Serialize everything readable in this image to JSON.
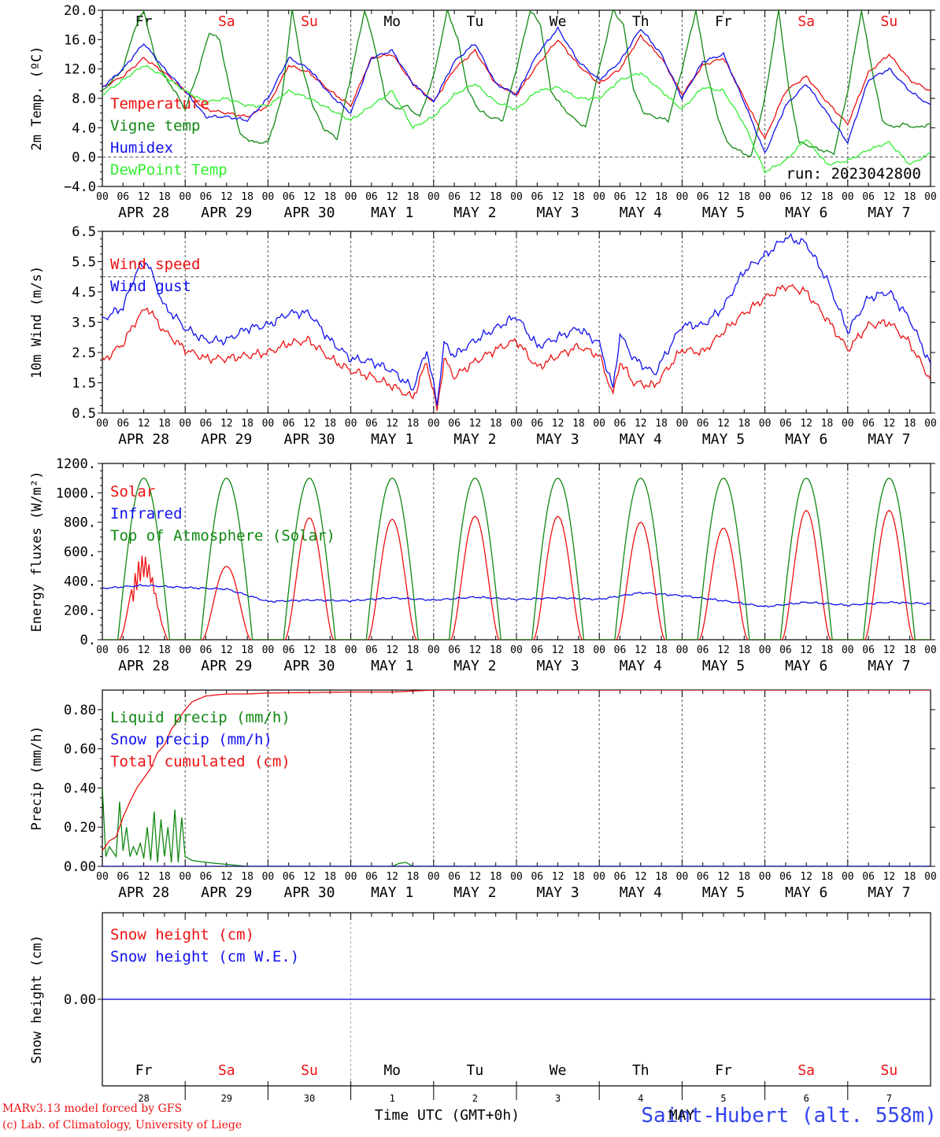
{
  "days": {
    "labels": [
      "APR 28",
      "APR 29",
      "APR 30",
      "MAY  1",
      "MAY  2",
      "MAY  3",
      "MAY  4",
      "MAY  5",
      "MAY  6",
      "MAY  7"
    ],
    "weekdays": [
      "Fr",
      "Sa",
      "Su",
      "Mo",
      "Tu",
      "We",
      "Th",
      "Fr",
      "Sa",
      "Su"
    ],
    "weekend": [
      false,
      true,
      true,
      false,
      false,
      false,
      false,
      false,
      true,
      true
    ],
    "day_numbers": [
      "28",
      "29",
      "30",
      "1",
      "2",
      "3",
      "4",
      "5",
      "6",
      "7"
    ],
    "hour_ticks": [
      "00",
      "06",
      "12",
      "18"
    ],
    "final_tick": "00"
  },
  "colors": {
    "red": "#ee1111",
    "darkgreen": "#118811",
    "blue": "#1111ee",
    "lightgreen": "#33ee33",
    "purple": "#8833aa",
    "grid": "#555555"
  },
  "footer": {
    "credit_line1": "MARv3.13 model forced by GFS",
    "credit_line2": "(c) Lab. of Climatology, University of Liege",
    "xlabel": "Time UTC (GMT+0h)",
    "month_overlay": "MAY",
    "station": "Saint-Hubert (alt. 558m)"
  },
  "chart_data": [
    {
      "id": "temp",
      "type": "line",
      "ylabel": "2m Temp. (ºC)",
      "ylim": [
        -4,
        20
      ],
      "yticks": [
        "20.0",
        "16.0",
        "12.0",
        "8.0",
        "4.0",
        "0.0",
        "−4.0"
      ],
      "ytick_values": [
        20,
        16,
        12,
        8,
        4,
        0,
        -4
      ],
      "reference_line": 0,
      "annotation": "run: 2023042800",
      "x_unit": "hours since Apr 28 00 UTC",
      "series": [
        {
          "name": "Temperature",
          "color": "red",
          "x": [
            0,
            6,
            12,
            18,
            24,
            30,
            36,
            42,
            48,
            54,
            60,
            66,
            72,
            78,
            84,
            90,
            96,
            102,
            108,
            114,
            120,
            126,
            132,
            138,
            144,
            150,
            156,
            162,
            168,
            174,
            180,
            186,
            192,
            198,
            204,
            210,
            216,
            222,
            228,
            234,
            240
          ],
          "values": [
            9.5,
            11,
            13.5,
            11.5,
            9,
            6.5,
            6,
            5.5,
            7,
            12.5,
            11.5,
            9,
            7,
            13.5,
            14,
            10,
            7.5,
            12,
            14.5,
            10,
            8.5,
            12.5,
            16,
            12.5,
            10,
            12,
            16.5,
            13.5,
            8.5,
            12.5,
            13.5,
            8,
            2.5,
            9,
            11,
            7.5,
            4.5,
            11.5,
            14,
            10.5,
            9
          ]
        },
        {
          "name": "Vigne temp",
          "color": "darkgreen",
          "x": [
            0,
            6,
            9,
            12,
            15,
            18,
            21,
            24,
            28,
            31,
            34,
            37,
            40,
            44,
            48,
            52,
            55,
            58,
            61,
            64,
            68,
            72,
            76,
            79,
            82,
            85,
            88,
            92,
            96,
            100,
            103,
            106,
            109,
            112,
            116,
            120,
            124,
            127,
            130,
            133,
            136,
            140,
            144,
            148,
            151,
            154,
            157,
            160,
            164,
            168,
            172,
            175,
            178,
            181,
            184,
            188,
            192,
            196,
            199,
            202,
            205,
            208,
            212,
            216,
            220,
            223,
            226,
            229,
            232,
            236,
            240
          ],
          "values": [
            9,
            12,
            17,
            20,
            14,
            11,
            9,
            6.5,
            12,
            17,
            16,
            9,
            3,
            2,
            2,
            8,
            20,
            12,
            7,
            4,
            2.5,
            11,
            20,
            15,
            8,
            6.5,
            7,
            5.5,
            11,
            20,
            16,
            9,
            6.5,
            5.5,
            5,
            12,
            20,
            18,
            9,
            7,
            5.5,
            4,
            12,
            20,
            18,
            9,
            6,
            5.5,
            5,
            12,
            20,
            12,
            6,
            2,
            1,
            0,
            8,
            20,
            9,
            2,
            1.5,
            1,
            0.5,
            9,
            20,
            12,
            5,
            4,
            4.5,
            4,
            4.5
          ]
        },
        {
          "name": "Humidex",
          "color": "blue",
          "x": [
            0,
            6,
            12,
            18,
            24,
            30,
            36,
            42,
            48,
            54,
            60,
            66,
            72,
            78,
            84,
            90,
            96,
            102,
            108,
            114,
            120,
            126,
            132,
            138,
            144,
            150,
            156,
            162,
            168,
            174,
            180,
            186,
            192,
            198,
            204,
            210,
            216,
            222,
            228,
            234,
            240
          ],
          "values": [
            9.5,
            12,
            15.5,
            12,
            9,
            5.5,
            5.5,
            5,
            8,
            13.5,
            12,
            8.5,
            6,
            13.5,
            14.5,
            10,
            7.5,
            13,
            15.5,
            10,
            8.5,
            14,
            17.5,
            13,
            10.5,
            13,
            17.5,
            14,
            8,
            13,
            14,
            7.5,
            0.5,
            7,
            10,
            6,
            2,
            10.5,
            12,
            9,
            7
          ]
        },
        {
          "name": "DewPoint Temp",
          "color": "lightgreen",
          "x": [
            0,
            6,
            12,
            18,
            24,
            30,
            36,
            42,
            48,
            54,
            60,
            66,
            72,
            78,
            84,
            90,
            96,
            102,
            108,
            114,
            120,
            126,
            132,
            138,
            144,
            150,
            156,
            162,
            168,
            174,
            180,
            186,
            192,
            198,
            204,
            210,
            216,
            222,
            228,
            234,
            240
          ],
          "values": [
            8.5,
            10.5,
            12.5,
            11,
            9,
            7.5,
            8,
            7,
            7,
            9,
            8,
            6.5,
            5,
            7,
            9,
            4,
            5.5,
            8.5,
            10,
            7.5,
            6.5,
            9,
            9.5,
            8,
            8,
            10.5,
            11.5,
            9,
            6.5,
            9.5,
            9,
            4.5,
            -2,
            -0.5,
            2.5,
            -1,
            -0.5,
            1,
            2,
            -1,
            0.5
          ]
        }
      ]
    },
    {
      "id": "wind",
      "type": "line",
      "ylabel": "10m Wind (m/s)",
      "ylim": [
        0.5,
        6.5
      ],
      "yticks": [
        "6.5",
        "5.5",
        "4.5",
        "3.5",
        "2.5",
        "1.5",
        "0.5"
      ],
      "ytick_values": [
        6.5,
        5.5,
        4.5,
        3.5,
        2.5,
        1.5,
        0.5
      ],
      "reference_line": 5,
      "x_unit": "hours since Apr 28 00 UTC",
      "series": [
        {
          "name": "Wind speed",
          "color": "red",
          "x": [
            0,
            6,
            10,
            13,
            16,
            18,
            21,
            24,
            30,
            36,
            42,
            48,
            54,
            60,
            66,
            72,
            78,
            84,
            90,
            94,
            97,
            99,
            102,
            108,
            114,
            120,
            126,
            132,
            138,
            144,
            148,
            150,
            154,
            160,
            168,
            174,
            180,
            186,
            192,
            198,
            204,
            210,
            216,
            222,
            228,
            234,
            240
          ],
          "values": [
            2.2,
            2.8,
            3.6,
            4,
            3.5,
            3.2,
            2.9,
            2.6,
            2.3,
            2.3,
            2.4,
            2.5,
            2.8,
            2.9,
            2.3,
            1.9,
            1.7,
            1.4,
            1,
            2.2,
            0.6,
            2.3,
            1.7,
            2.2,
            2.6,
            2.9,
            2,
            2.4,
            2.7,
            2.4,
            1.1,
            2.2,
            1.5,
            1.4,
            2.6,
            2.5,
            3.2,
            3.8,
            4.3,
            4.7,
            4.5,
            3.6,
            2.6,
            3.4,
            3.5,
            2.8,
            1.6
          ]
        },
        {
          "name": "Wind gust",
          "color": "blue",
          "x": [
            0,
            6,
            10,
            13,
            16,
            18,
            21,
            24,
            30,
            36,
            42,
            48,
            54,
            60,
            66,
            72,
            78,
            84,
            90,
            94,
            97,
            99,
            102,
            108,
            114,
            120,
            126,
            132,
            138,
            144,
            148,
            150,
            154,
            160,
            168,
            174,
            180,
            186,
            192,
            198,
            204,
            210,
            216,
            222,
            228,
            234,
            240
          ],
          "values": [
            3.6,
            4,
            5.2,
            5.5,
            4.6,
            4,
            3.7,
            3.3,
            2.9,
            2.9,
            3.3,
            3.4,
            3.8,
            3.8,
            2.9,
            2.3,
            2.2,
            1.9,
            1.3,
            2.6,
            0.8,
            2.8,
            2.4,
            2.9,
            3.3,
            3.7,
            2.7,
            3,
            3.3,
            2.8,
            1.3,
            3.1,
            2.3,
            1.8,
            3.4,
            3.4,
            4,
            5.2,
            5.7,
            6.3,
            6.1,
            4.9,
            3.2,
            4.3,
            4.5,
            3.6,
            2.1
          ]
        }
      ]
    },
    {
      "id": "energy",
      "type": "line",
      "ylabel": "Energy fluxes (W/m²)",
      "ylim": [
        0,
        1200
      ],
      "yticks": [
        "1200.",
        "1000.",
        "800.",
        "600.",
        "400.",
        "200.",
        "0."
      ],
      "ytick_values": [
        1200,
        1000,
        800,
        600,
        400,
        200,
        0
      ],
      "x_unit": "hours since Apr 28 00 UTC",
      "solar_peaks": [
        620,
        500,
        830,
        820,
        840,
        840,
        800,
        760,
        880,
        880
      ],
      "toa_peak": 1100,
      "series": [
        {
          "name": "Solar",
          "color": "red"
        },
        {
          "name": "Infrared",
          "color": "blue",
          "x": [
            0,
            12,
            24,
            36,
            48,
            60,
            72,
            84,
            96,
            108,
            120,
            132,
            144,
            156,
            168,
            180,
            192,
            204,
            216,
            228,
            240
          ],
          "values": [
            350,
            370,
            355,
            345,
            260,
            270,
            265,
            285,
            270,
            290,
            275,
            285,
            275,
            320,
            300,
            265,
            225,
            255,
            235,
            255,
            245
          ]
        },
        {
          "name": "Top of Atmosphere (Solar)",
          "color": "darkgreen"
        }
      ]
    },
    {
      "id": "precip",
      "type": "line",
      "ylabel": "Precip (mm/h)",
      "ylim": [
        0,
        0.9
      ],
      "yticks": [
        "0.80",
        "0.60",
        "0.40",
        "0.20",
        "0.00"
      ],
      "ytick_values": [
        0.8,
        0.6,
        0.4,
        0.2,
        0.0
      ],
      "x_unit": "hours since Apr 28 00 UTC",
      "series": [
        {
          "name": "Liquid precip (mm/h)",
          "color": "darkgreen",
          "x": [
            0,
            1,
            2,
            4,
            5,
            6,
            7,
            8,
            9,
            10,
            11,
            12,
            13,
            14,
            15,
            16,
            17,
            18,
            19,
            20,
            21,
            22,
            23,
            24,
            26,
            30,
            36,
            42,
            48,
            84,
            86,
            88,
            90
          ],
          "values": [
            0.4,
            0.05,
            0.1,
            0.05,
            0.33,
            0.08,
            0.2,
            0.05,
            0.1,
            0.06,
            0.12,
            0.04,
            0.2,
            0.03,
            0.28,
            0.02,
            0.24,
            0.05,
            0.2,
            0.02,
            0.29,
            0.02,
            0.25,
            0.05,
            0.03,
            0.02,
            0.01,
            0.0,
            0.0,
            0.0,
            0.015,
            0.02,
            0.0
          ]
        },
        {
          "name": "Snow precip (mm/h)",
          "color": "blue",
          "x": [
            0,
            240
          ],
          "values": [
            0,
            0
          ]
        },
        {
          "name": "Total cumulated (cm)",
          "color": "red",
          "x": [
            0,
            2,
            4,
            6,
            8,
            10,
            12,
            14,
            16,
            18,
            20,
            22,
            24,
            26,
            30,
            36,
            42,
            48,
            72,
            84,
            96,
            240
          ],
          "values": [
            0.08,
            0.13,
            0.15,
            0.25,
            0.33,
            0.4,
            0.45,
            0.5,
            0.58,
            0.62,
            0.7,
            0.75,
            0.8,
            0.84,
            0.87,
            0.88,
            0.88,
            0.885,
            0.89,
            0.89,
            0.9,
            0.9
          ]
        }
      ]
    },
    {
      "id": "snow",
      "type": "line",
      "ylabel": "Snow height (cm)",
      "ylim": [
        -1,
        1
      ],
      "yticks": [
        "0.00"
      ],
      "ytick_values": [
        0
      ],
      "x_unit": "hours since Apr 28 00 UTC",
      "series": [
        {
          "name": "Snow height (cm)",
          "color": "red",
          "x": [
            0,
            240
          ],
          "values": [
            0,
            0
          ]
        },
        {
          "name": "Snow height (cm W.E.)",
          "color": "blue",
          "x": [
            0,
            240
          ],
          "values": [
            0,
            0
          ]
        }
      ]
    }
  ]
}
